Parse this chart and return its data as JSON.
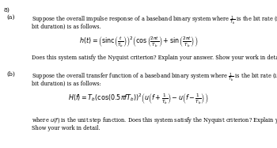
{
  "background_color": "#ffffff",
  "fig_width": 3.5,
  "fig_height": 1.87,
  "dpi": 100,
  "text_color": "#000000",
  "label_8": "8)",
  "label_a": "(a)",
  "label_b": "(b)",
  "text_a1": "Suppose the overall impulse response of a baseband binary system where $\\frac{1}{T_b}$ is the bit rate (i.e., $T_b$ is the",
  "text_a2": "bit duration) is as follows.",
  "formula_a": "$h(t) = \\left(\\mathrm{sinc}\\left(\\frac{t}{T_b}\\right)\\right)^{2}\\left(\\cos\\left(\\frac{2\\pi t}{T_b}\\right) + \\sin\\left(\\frac{2\\pi t}{T_b}\\right)\\right)$",
  "text_a3": "Does this system satisfy the Nyquist criterion? Explain your answer. Show your work in detail.",
  "text_b1": "Suppose the overall transfer function of a baseband binary system where $\\frac{1}{T_b}$ is the bit rate (i.e., $T_b$ is the",
  "text_b2": "bit duration) is as follows:",
  "formula_b": "$H(f) = T_b\\left(\\cos(0.5\\pi f T_b)\\right)^{2}\\left(u\\left(f+\\frac{1}{T_b}\\right) - u\\left(f - \\frac{1}{T_b}\\right)\\right)$",
  "text_b3": "where $u(f)$ is the unit step function. Does this system satisfy the Nyquist criterion? Explain your answer.",
  "text_b4": "Show your work in detail.",
  "fs_body": 4.8,
  "fs_formula": 5.8,
  "fs_label": 5.5,
  "fs_8": 5.5
}
